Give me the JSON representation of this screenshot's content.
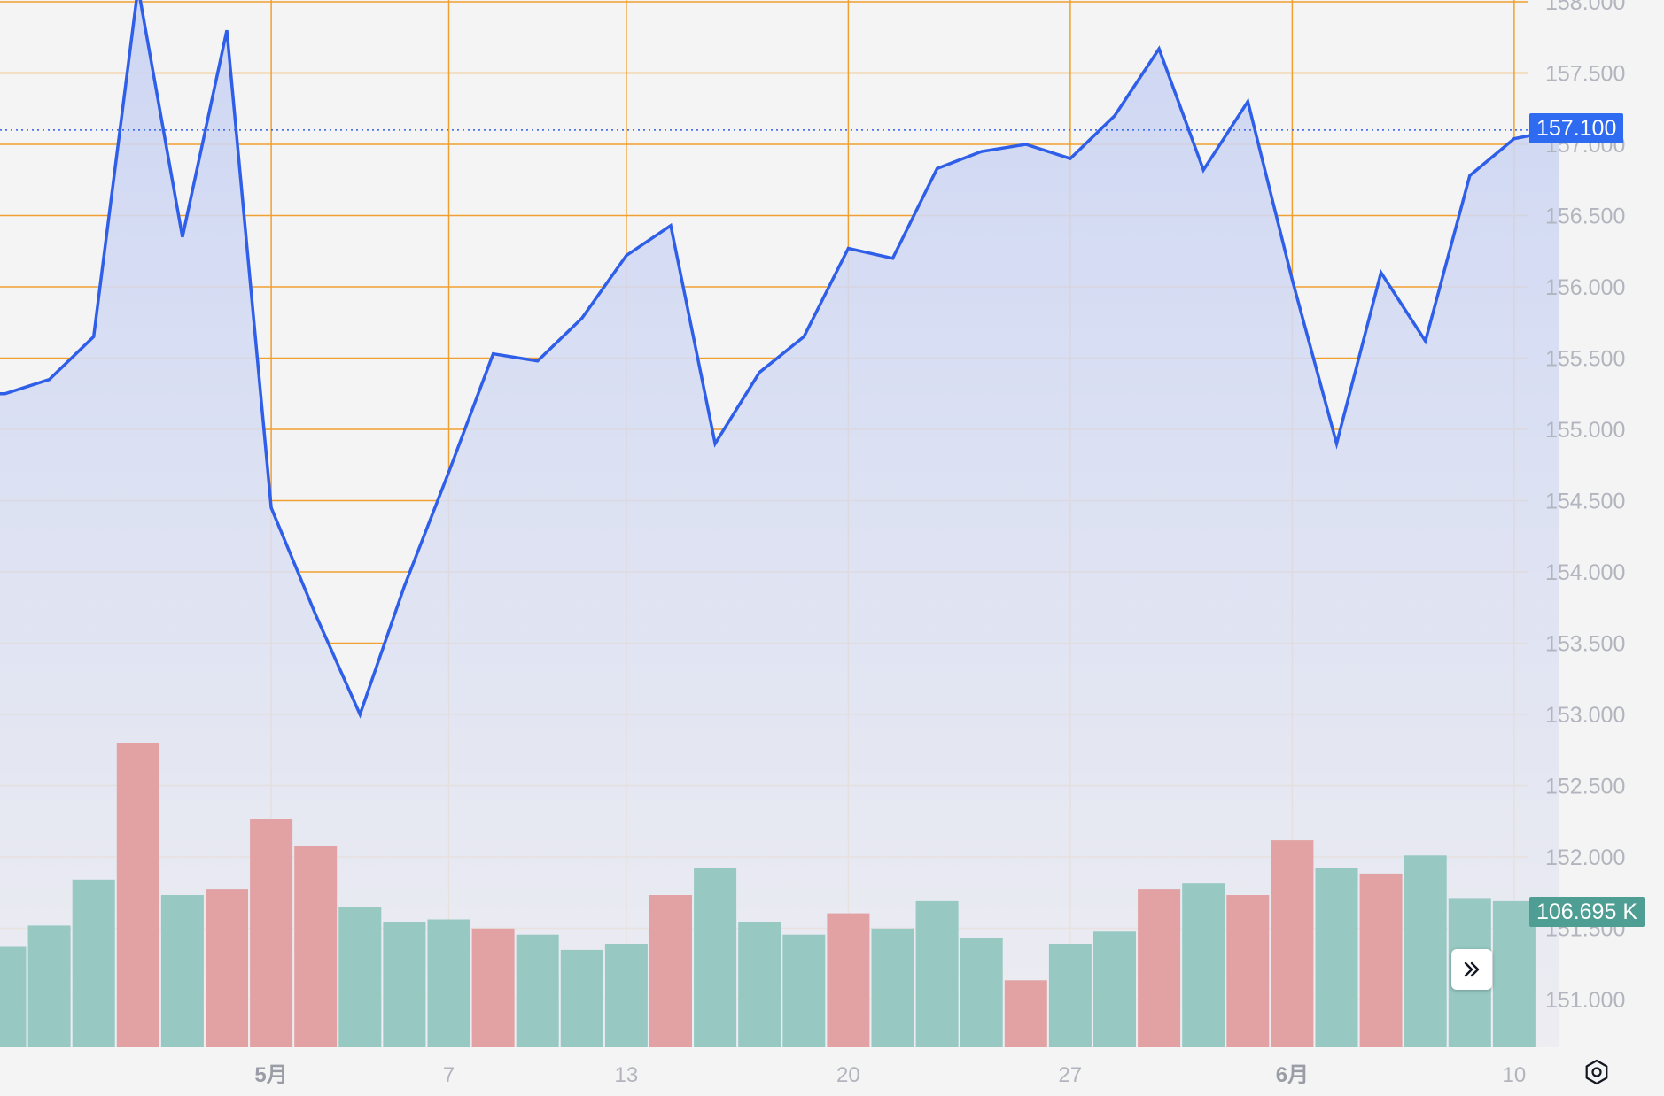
{
  "chart_data": {
    "type": "area",
    "subtype": "line-area-with-volume-bars",
    "x": [
      "4/24",
      "4/25",
      "4/26",
      "4/29",
      "4/30",
      "5/1",
      "5/2",
      "5/3",
      "5/6",
      "5/7",
      "5/8",
      "5/9",
      "5/10",
      "5/13",
      "5/14",
      "5/15",
      "5/16",
      "5/17",
      "5/20",
      "5/21",
      "5/22",
      "5/23",
      "5/24",
      "5/27",
      "5/28",
      "5/29",
      "5/30",
      "5/31",
      "6/3",
      "6/4",
      "6/5",
      "6/6",
      "6/7",
      "6/10",
      "6/11"
    ],
    "x_tick_labels": [
      {
        "label": "5月",
        "at": "5/1",
        "bold": true
      },
      {
        "label": "7",
        "at": "5/7",
        "bold": false
      },
      {
        "label": "13",
        "at": "5/13",
        "bold": false
      },
      {
        "label": "20",
        "at": "5/20",
        "bold": false
      },
      {
        "label": "27",
        "at": "5/27",
        "bold": false
      },
      {
        "label": "6月",
        "at": "6/3",
        "bold": true
      },
      {
        "label": "10",
        "at": "6/10",
        "bold": false
      }
    ],
    "price_series": [
      {
        "x": "4/23",
        "y": 155.25
      },
      {
        "x": "4/24",
        "y": 155.35
      },
      {
        "x": "4/25",
        "y": 155.65
      },
      {
        "x": "4/26",
        "y": 158.1
      },
      {
        "x": "4/29",
        "y": 156.35
      },
      {
        "x": "4/30",
        "y": 157.8
      },
      {
        "x": "5/1",
        "y": 154.45
      },
      {
        "x": "5/2",
        "y": 153.7
      },
      {
        "x": "5/3",
        "y": 153.0
      },
      {
        "x": "5/6",
        "y": 153.9
      },
      {
        "x": "5/7",
        "y": 154.7
      },
      {
        "x": "5/8",
        "y": 155.53
      },
      {
        "x": "5/9",
        "y": 155.48
      },
      {
        "x": "5/10",
        "y": 155.78
      },
      {
        "x": "5/13",
        "y": 156.22
      },
      {
        "x": "5/14",
        "y": 156.43
      },
      {
        "x": "5/15",
        "y": 154.9
      },
      {
        "x": "5/16",
        "y": 155.4
      },
      {
        "x": "5/17",
        "y": 155.65
      },
      {
        "x": "5/20",
        "y": 156.27
      },
      {
        "x": "5/21",
        "y": 156.2
      },
      {
        "x": "5/22",
        "y": 156.83
      },
      {
        "x": "5/23",
        "y": 156.95
      },
      {
        "x": "5/24",
        "y": 157.0
      },
      {
        "x": "5/27",
        "y": 156.9
      },
      {
        "x": "5/28",
        "y": 157.2
      },
      {
        "x": "5/29",
        "y": 157.67
      },
      {
        "x": "5/30",
        "y": 156.82
      },
      {
        "x": "5/31",
        "y": 157.3
      },
      {
        "x": "6/3",
        "y": 156.05
      },
      {
        "x": "6/4",
        "y": 154.9
      },
      {
        "x": "6/5",
        "y": 156.1
      },
      {
        "x": "6/6",
        "y": 155.62
      },
      {
        "x": "6/7",
        "y": 156.78
      },
      {
        "x": "6/10",
        "y": 157.04
      },
      {
        "x": "6/11",
        "y": 157.1
      }
    ],
    "volume_bars": [
      {
        "x": "4/23",
        "up": true,
        "level": 0.33
      },
      {
        "x": "4/24",
        "up": true,
        "level": 0.4
      },
      {
        "x": "4/25",
        "up": true,
        "level": 0.55
      },
      {
        "x": "4/26",
        "up": false,
        "level": 1.0
      },
      {
        "x": "4/29",
        "up": true,
        "level": 0.5
      },
      {
        "x": "4/30",
        "up": false,
        "level": 0.52
      },
      {
        "x": "5/1",
        "up": false,
        "level": 0.75
      },
      {
        "x": "5/2",
        "up": false,
        "level": 0.66
      },
      {
        "x": "5/3",
        "up": true,
        "level": 0.46
      },
      {
        "x": "5/6",
        "up": true,
        "level": 0.41
      },
      {
        "x": "5/7",
        "up": true,
        "level": 0.42
      },
      {
        "x": "5/8",
        "up": false,
        "level": 0.39
      },
      {
        "x": "5/9",
        "up": true,
        "level": 0.37
      },
      {
        "x": "5/10",
        "up": true,
        "level": 0.32
      },
      {
        "x": "5/13",
        "up": true,
        "level": 0.34
      },
      {
        "x": "5/14",
        "up": false,
        "level": 0.5
      },
      {
        "x": "5/15",
        "up": true,
        "level": 0.59
      },
      {
        "x": "5/16",
        "up": true,
        "level": 0.41
      },
      {
        "x": "5/17",
        "up": true,
        "level": 0.37
      },
      {
        "x": "5/20",
        "up": false,
        "level": 0.44
      },
      {
        "x": "5/21",
        "up": true,
        "level": 0.39
      },
      {
        "x": "5/22",
        "up": true,
        "level": 0.48
      },
      {
        "x": "5/23",
        "up": true,
        "level": 0.36
      },
      {
        "x": "5/24",
        "up": false,
        "level": 0.22
      },
      {
        "x": "5/27",
        "up": true,
        "level": 0.34
      },
      {
        "x": "5/28",
        "up": true,
        "level": 0.38
      },
      {
        "x": "5/29",
        "up": false,
        "level": 0.52
      },
      {
        "x": "5/30",
        "up": true,
        "level": 0.54
      },
      {
        "x": "5/31",
        "up": false,
        "level": 0.5
      },
      {
        "x": "6/3",
        "up": false,
        "level": 0.68
      },
      {
        "x": "6/4",
        "up": true,
        "level": 0.59
      },
      {
        "x": "6/5",
        "up": false,
        "level": 0.57
      },
      {
        "x": "6/6",
        "up": true,
        "level": 0.63
      },
      {
        "x": "6/7",
        "up": true,
        "level": 0.49
      },
      {
        "x": "6/10",
        "up": true,
        "level": 0.48
      }
    ],
    "y_ticks": [
      "158.000",
      "157.500",
      "157.000",
      "156.500",
      "156.000",
      "155.500",
      "155.000",
      "154.500",
      "154.000",
      "153.500",
      "153.000",
      "152.500",
      "152.000",
      "151.500",
      "151.000"
    ],
    "ylim": [
      150.78,
      158.08
    ],
    "grid": true,
    "title": "",
    "xlabel": "",
    "ylabel": "",
    "last_price_label": "157.100",
    "last_volume_label": "106.695 K",
    "colors": {
      "line": "#2f5fe8",
      "area_top": "#c9d3f3",
      "area_bottom": "#ececf2",
      "grid": "#f0a030",
      "bar_up": "#97c8c2",
      "bar_down": "#e2a2a3",
      "background": "#f4f4f4",
      "price_badge": "#2e6bf0",
      "volume_badge": "#4e9e93"
    }
  },
  "icons": {
    "scroll": "double-chevron-right-icon",
    "settings": "settings-gear-icon"
  }
}
